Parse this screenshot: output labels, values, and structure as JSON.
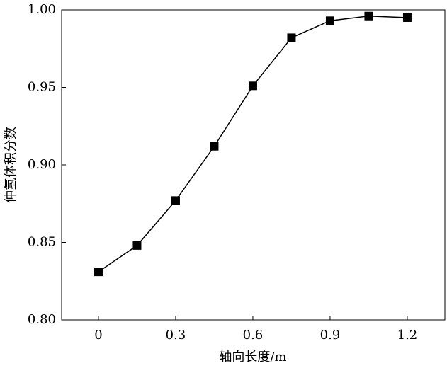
{
  "chart_data": {
    "type": "line",
    "x_label": "轴向长度/m",
    "y_label": "仲氢体积分数",
    "x": [
      0,
      0.15,
      0.3,
      0.45,
      0.6,
      0.75,
      0.9,
      1.05,
      1.2
    ],
    "values": [
      0.831,
      0.848,
      0.877,
      0.912,
      0.951,
      0.982,
      0.993,
      0.996,
      0.995
    ],
    "color": "#000000",
    "xlim": [
      -0.143,
      1.346
    ],
    "xticks": [
      0,
      0.3,
      0.6,
      0.9,
      1.2
    ],
    "ylim": [
      0.8,
      1.0
    ],
    "yticks": [
      {
        "value": 0.8,
        "label": "0.80"
      },
      0.85,
      {
        "value": 0.9,
        "label": "0.90"
      },
      0.95,
      {
        "value": 1.0,
        "label": "1.00"
      }
    ]
  }
}
